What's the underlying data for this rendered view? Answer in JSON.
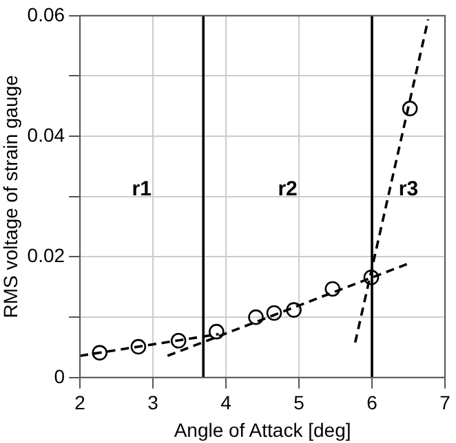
{
  "chart_data": {
    "type": "scatter",
    "xlabel": "Angle of Attack [deg]",
    "ylabel": "RMS voltage of strain gauge",
    "series": [
      {
        "color": "#000000",
        "marker": "circle",
        "x": [
          2.27,
          2.8,
          3.35,
          3.87,
          4.41,
          4.66,
          4.93,
          5.46,
          5.99,
          6.52
        ],
        "values": [
          0.0041,
          0.0051,
          0.0061,
          0.0076,
          0.01,
          0.0107,
          0.0112,
          0.0147,
          0.0166,
          0.0446
        ]
      },
      {
        "type": "line",
        "color": "#000000",
        "line_style": "dashed",
        "marker": "none",
        "x": [
          2,
          3.9
        ],
        "values": [
          0.0036,
          0.0072
        ]
      },
      {
        "type": "line",
        "color": "#000000",
        "line_style": "dashed",
        "marker": "none",
        "x": [
          3.2,
          6.5
        ],
        "values": [
          0.0036,
          0.0189
        ]
      },
      {
        "type": "line",
        "color": "#000000",
        "line_style": "dashed",
        "marker": "none",
        "x": [
          5.77,
          6.77
        ],
        "values": [
          0.0058,
          0.0594
        ]
      }
    ],
    "xlim": [
      2,
      7
    ],
    "xticks": [
      2,
      3,
      4,
      5,
      6,
      7
    ],
    "ylim": [
      0,
      0.06
    ],
    "yticks": [
      0,
      {
        "value": 0.01,
        "label": null
      },
      0.02,
      {
        "value": 0.03,
        "label": null
      },
      0.04,
      {
        "value": 0.05,
        "label": null
      },
      0.06
    ],
    "grid": true,
    "legend": false,
    "ref_lines": [
      {
        "axis": "x",
        "value": 3.69,
        "label": null,
        "color": "#000000",
        "line_style": "solid"
      },
      {
        "axis": "x",
        "value": 6,
        "label": null,
        "color": "#000000",
        "line_style": "solid"
      }
    ],
    "annotations": [
      "r1",
      "r2",
      "r3"
    ]
  }
}
